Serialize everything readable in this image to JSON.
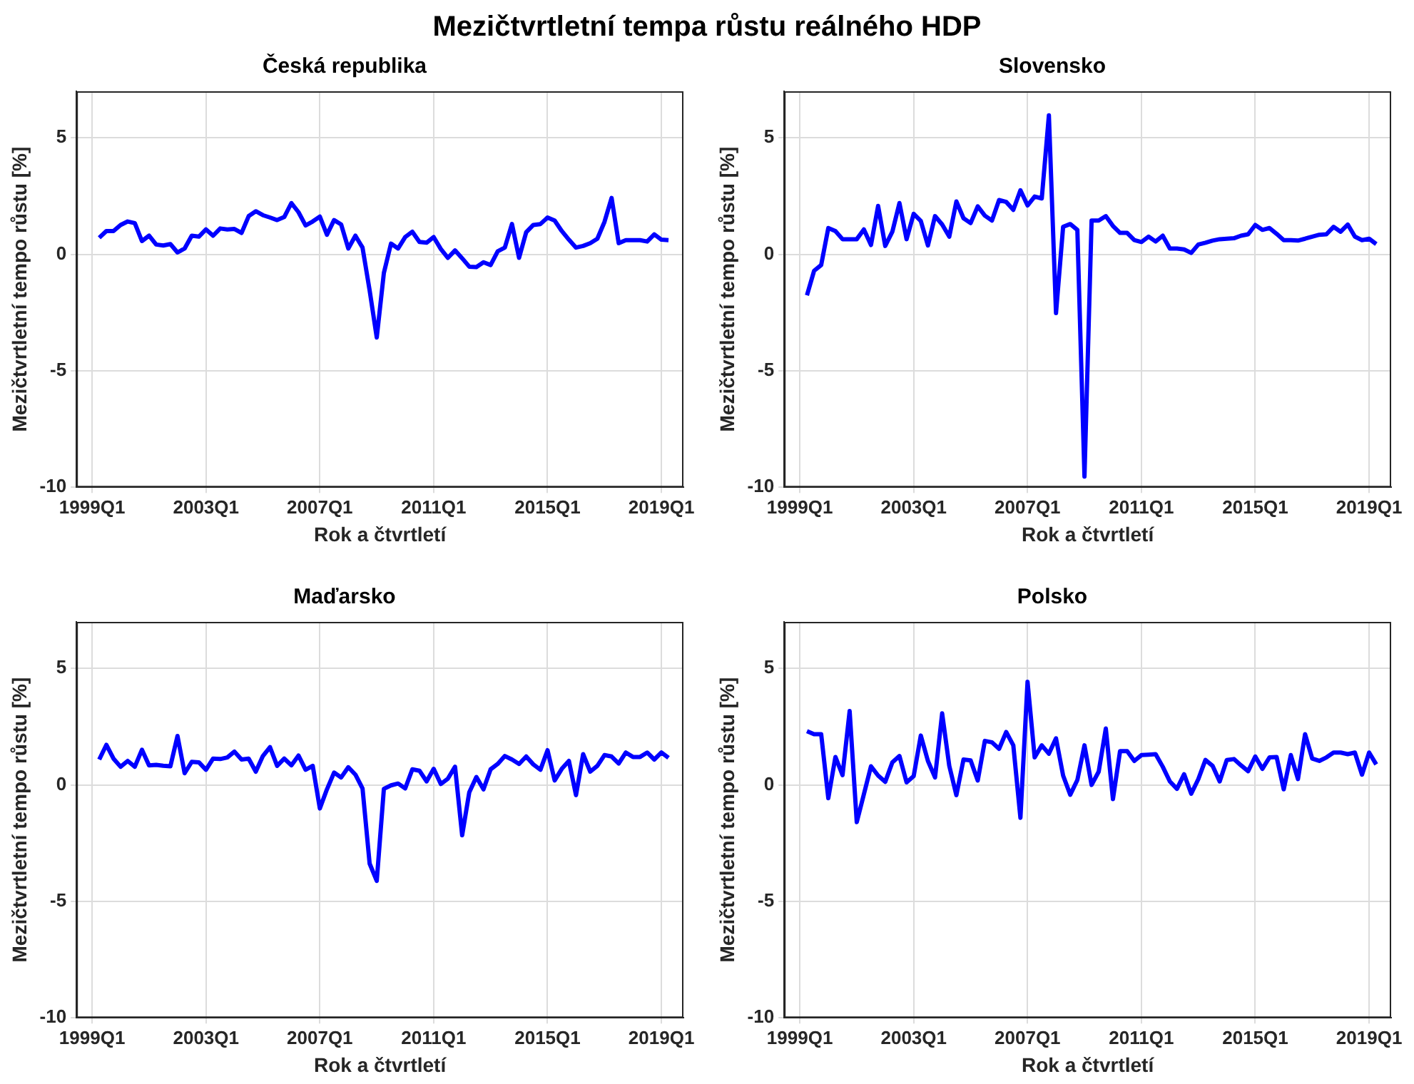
{
  "chart_data": [
    {
      "type": "line",
      "title": "Česká republika",
      "xlabel": "Rok a čtvrtletí",
      "ylabel": "Mezičtvrtletní tempo růstu [%]",
      "annotations": [
        "Mezičtvrtletní tempa růstu reálného HDP"
      ],
      "color": "#0000ff",
      "grid": true,
      "legend": false,
      "marker": "none",
      "line_style": "solid",
      "categories": [
        "1999Q1",
        null,
        null,
        null,
        null,
        null,
        null,
        null,
        null,
        null,
        null,
        null,
        null,
        null,
        null,
        null,
        "2003Q1",
        null,
        null,
        null,
        null,
        null,
        null,
        null,
        null,
        null,
        null,
        null,
        null,
        null,
        null,
        null,
        "2007Q1",
        null,
        null,
        null,
        null,
        null,
        null,
        null,
        null,
        null,
        null,
        null,
        null,
        null,
        null,
        null,
        "2011Q1",
        null,
        null,
        null,
        null,
        null,
        null,
        null,
        null,
        null,
        null,
        null,
        null,
        null,
        null,
        null,
        "2015Q1",
        null,
        null,
        null,
        null,
        null,
        null,
        null,
        null,
        null,
        null,
        null,
        null,
        null,
        null,
        null,
        "2019Q1",
        null
      ],
      "values": [
        null,
        0.71,
        1.0,
        1.0,
        1.26,
        1.41,
        1.34,
        0.57,
        0.8,
        0.42,
        0.38,
        0.44,
        0.08,
        0.25,
        0.8,
        0.76,
        1.07,
        0.8,
        1.11,
        1.07,
        1.09,
        0.92,
        1.64,
        1.85,
        1.68,
        1.58,
        1.47,
        1.6,
        2.2,
        1.81,
        1.24,
        1.41,
        1.62,
        0.84,
        1.47,
        1.28,
        0.25,
        0.8,
        0.29,
        -1.55,
        -3.57,
        -0.8,
        0.46,
        0.25,
        0.74,
        0.97,
        0.53,
        0.5,
        0.74,
        0.23,
        -0.15,
        0.17,
        -0.17,
        -0.53,
        -0.55,
        -0.34,
        -0.46,
        0.13,
        0.29,
        1.3,
        -0.15,
        0.95,
        1.26,
        1.3,
        1.58,
        1.45,
        1.0,
        0.63,
        0.29,
        0.36,
        0.48,
        0.67,
        1.39,
        2.42,
        0.48,
        0.61,
        0.61,
        0.61,
        0.55,
        0.86,
        0.63,
        0.61
      ],
      "ylim": [
        -10,
        7
      ],
      "yticks": [
        -10,
        -5,
        0,
        5
      ]
    },
    {
      "type": "line",
      "title": "Slovensko",
      "xlabel": "Rok a čtvrtletí",
      "ylabel": "Mezičtvrtletní tempo růstu [%]",
      "color": "#0000ff",
      "grid": true,
      "legend": false,
      "marker": "none",
      "line_style": "solid",
      "categories": [
        "1999Q1",
        null,
        null,
        null,
        null,
        null,
        null,
        null,
        null,
        null,
        null,
        null,
        null,
        null,
        null,
        null,
        "2003Q1",
        null,
        null,
        null,
        null,
        null,
        null,
        null,
        null,
        null,
        null,
        null,
        null,
        null,
        null,
        null,
        "2007Q1",
        null,
        null,
        null,
        null,
        null,
        null,
        null,
        null,
        null,
        null,
        null,
        null,
        null,
        null,
        null,
        "2011Q1",
        null,
        null,
        null,
        null,
        null,
        null,
        null,
        null,
        null,
        null,
        null,
        null,
        null,
        null,
        null,
        "2015Q1",
        null,
        null,
        null,
        null,
        null,
        null,
        null,
        null,
        null,
        null,
        null,
        null,
        null,
        null,
        null,
        "2019Q1",
        null
      ],
      "values": [
        null,
        -1.76,
        -0.71,
        -0.46,
        1.13,
        1.0,
        0.65,
        0.65,
        0.65,
        1.07,
        0.4,
        2.08,
        0.36,
        0.97,
        2.2,
        0.65,
        1.74,
        1.43,
        0.38,
        1.64,
        1.28,
        0.76,
        2.27,
        1.55,
        1.34,
        2.06,
        1.66,
        1.45,
        2.33,
        2.25,
        1.91,
        2.75,
        2.1,
        2.48,
        2.4,
        5.97,
        -2.52,
        1.18,
        1.3,
        1.05,
        -9.54,
        1.45,
        1.45,
        1.64,
        1.22,
        0.92,
        0.92,
        0.61,
        0.53,
        0.76,
        0.55,
        0.8,
        0.25,
        0.25,
        0.21,
        0.06,
        0.42,
        0.5,
        0.59,
        0.65,
        0.67,
        0.69,
        0.8,
        0.86,
        1.26,
        1.05,
        1.13,
        0.88,
        0.61,
        0.61,
        0.59,
        0.67,
        0.76,
        0.84,
        0.86,
        1.18,
        0.97,
        1.28,
        0.76,
        0.61,
        0.67,
        0.44
      ],
      "ylim": [
        -10,
        7
      ],
      "yticks": [
        -10,
        -5,
        0,
        5
      ]
    },
    {
      "type": "line",
      "title": "Maďarsko",
      "xlabel": "Rok a čtvrtletí",
      "ylabel": "Mezičtvrtletní tempo růstu [%]",
      "color": "#0000ff",
      "grid": true,
      "legend": false,
      "marker": "none",
      "line_style": "solid",
      "categories": [
        "1999Q1",
        null,
        null,
        null,
        null,
        null,
        null,
        null,
        null,
        null,
        null,
        null,
        null,
        null,
        null,
        null,
        "2003Q1",
        null,
        null,
        null,
        null,
        null,
        null,
        null,
        null,
        null,
        null,
        null,
        null,
        null,
        null,
        null,
        "2007Q1",
        null,
        null,
        null,
        null,
        null,
        null,
        null,
        null,
        null,
        null,
        null,
        null,
        null,
        null,
        null,
        "2011Q1",
        null,
        null,
        null,
        null,
        null,
        null,
        null,
        null,
        null,
        null,
        null,
        null,
        null,
        null,
        null,
        "2015Q1",
        null,
        null,
        null,
        null,
        null,
        null,
        null,
        null,
        null,
        null,
        null,
        null,
        null,
        null,
        null,
        "2019Q1",
        null
      ],
      "values": [
        null,
        1.09,
        1.72,
        1.13,
        0.78,
        1.03,
        0.78,
        1.51,
        0.84,
        0.86,
        0.82,
        0.8,
        2.1,
        0.5,
        0.99,
        0.97,
        0.65,
        1.13,
        1.11,
        1.18,
        1.43,
        1.09,
        1.13,
        0.57,
        1.24,
        1.62,
        0.82,
        1.13,
        0.84,
        1.26,
        0.65,
        0.82,
        -1.01,
        -0.19,
        0.53,
        0.32,
        0.76,
        0.44,
        -0.15,
        -3.38,
        -4.12,
        -0.17,
        -0.02,
        0.06,
        -0.15,
        0.67,
        0.61,
        0.15,
        0.69,
        0.04,
        0.27,
        0.78,
        -2.16,
        -0.32,
        0.34,
        -0.19,
        0.67,
        0.9,
        1.24,
        1.09,
        0.9,
        1.22,
        0.88,
        0.65,
        1.49,
        0.19,
        0.69,
        1.03,
        -0.44,
        1.32,
        0.57,
        0.82,
        1.28,
        1.22,
        0.92,
        1.39,
        1.2,
        1.2,
        1.39,
        1.09,
        1.39,
        1.16
      ],
      "ylim": [
        -10,
        7
      ],
      "yticks": [
        -10,
        -5,
        0,
        5
      ]
    },
    {
      "type": "line",
      "title": "Polsko",
      "xlabel": "Rok a čtvrtletí",
      "ylabel": "Mezičtvrtletní tempo růstu [%]",
      "color": "#0000ff",
      "grid": true,
      "legend": false,
      "marker": "none",
      "line_style": "solid",
      "categories": [
        "1999Q1",
        null,
        null,
        null,
        null,
        null,
        null,
        null,
        null,
        null,
        null,
        null,
        null,
        null,
        null,
        null,
        "2003Q1",
        null,
        null,
        null,
        null,
        null,
        null,
        null,
        null,
        null,
        null,
        null,
        null,
        null,
        null,
        null,
        "2007Q1",
        null,
        null,
        null,
        null,
        null,
        null,
        null,
        null,
        null,
        null,
        null,
        null,
        null,
        null,
        null,
        "2011Q1",
        null,
        null,
        null,
        null,
        null,
        null,
        null,
        null,
        null,
        null,
        null,
        null,
        null,
        null,
        null,
        "2015Q1",
        null,
        null,
        null,
        null,
        null,
        null,
        null,
        null,
        null,
        null,
        null,
        null,
        null,
        null,
        null,
        "2019Q1",
        null
      ],
      "values": [
        null,
        2.31,
        2.18,
        2.18,
        -0.57,
        1.2,
        0.42,
        3.17,
        -1.6,
        -0.4,
        0.8,
        0.4,
        0.13,
        0.97,
        1.24,
        0.11,
        0.38,
        2.12,
        1.03,
        0.32,
        3.07,
        0.82,
        -0.44,
        1.09,
        1.05,
        0.19,
        1.89,
        1.83,
        1.55,
        2.27,
        1.7,
        -1.41,
        4.43,
        1.18,
        1.7,
        1.34,
        2.0,
        0.4,
        -0.42,
        0.21,
        1.7,
        0.0,
        0.57,
        2.42,
        -0.61,
        1.45,
        1.45,
        1.03,
        1.28,
        1.3,
        1.32,
        0.78,
        0.15,
        -0.17,
        0.46,
        -0.38,
        0.25,
        1.07,
        0.82,
        0.15,
        1.07,
        1.11,
        0.84,
        0.59,
        1.22,
        0.69,
        1.18,
        1.2,
        -0.19,
        1.28,
        0.25,
        2.18,
        1.13,
        1.03,
        1.18,
        1.39,
        1.39,
        1.32,
        1.39,
        0.44,
        1.39,
        0.88
      ],
      "ylim": [
        -10,
        7
      ],
      "yticks": [
        -10,
        -5,
        0,
        5
      ]
    }
  ]
}
